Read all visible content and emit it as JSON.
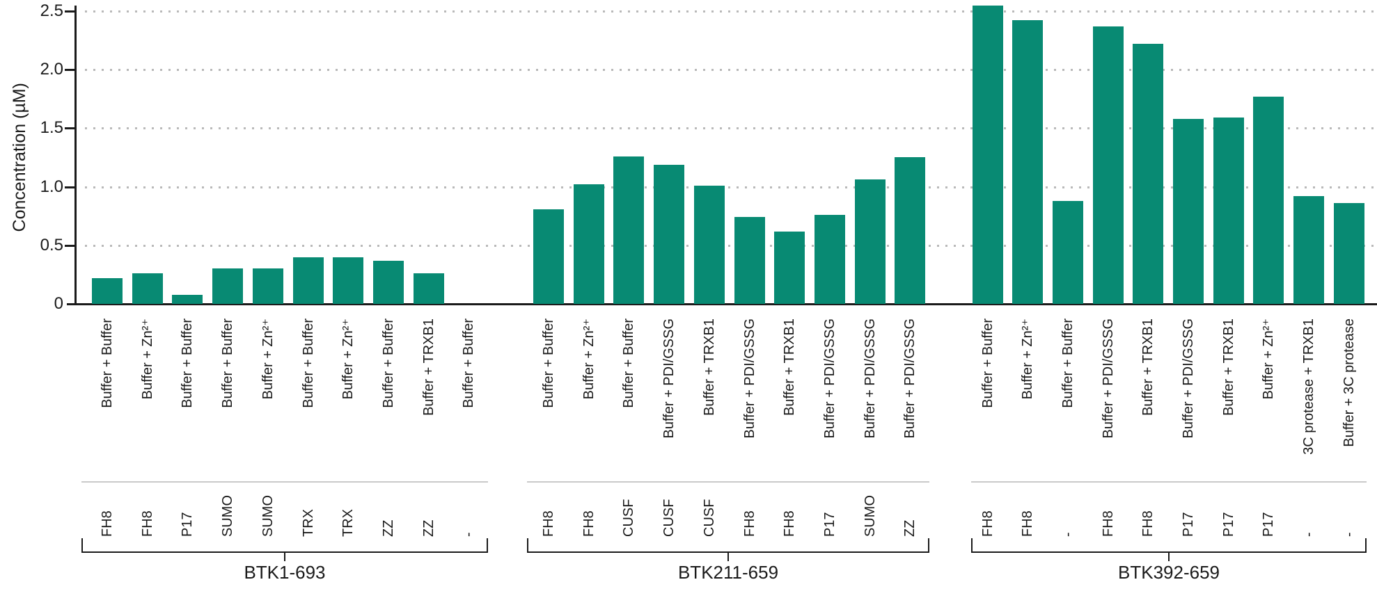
{
  "chart_data": {
    "type": "bar",
    "title": "",
    "ylabel": "Concentration (µM)",
    "ylim": [
      0,
      2.5
    ],
    "grid": "dotted horizontal gridlines at each 0.5",
    "legend": "none",
    "bar_color": "#088a73",
    "axis_color": "#1a1a1a",
    "gridline_color": "#b9b9b9",
    "yticks": [
      {
        "label": "0",
        "value": 0
      },
      {
        "label": "0.5",
        "value": 0.5
      },
      {
        "label": "1.0",
        "value": 1.0
      },
      {
        "label": "1.5",
        "value": 1.5
      },
      {
        "label": "2.0",
        "value": 2.0
      },
      {
        "label": "2.5",
        "value": 2.5
      }
    ],
    "groups": [
      {
        "name": "BTK1-693",
        "bars": [
          {
            "condition": "Buffer + Buffer",
            "tag": "FH8",
            "value": 0.22
          },
          {
            "condition": "Buffer + Zn²⁺",
            "tag": "FH8",
            "value": 0.26
          },
          {
            "condition": "Buffer + Buffer",
            "tag": "P17",
            "value": 0.08
          },
          {
            "condition": "Buffer + Buffer",
            "tag": "SUMO",
            "value": 0.3
          },
          {
            "condition": "Buffer + Zn²⁺",
            "tag": "SUMO",
            "value": 0.3
          },
          {
            "condition": "Buffer + Buffer",
            "tag": "TRX",
            "value": 0.4
          },
          {
            "condition": "Buffer + Zn²⁺",
            "tag": "TRX",
            "value": 0.4
          },
          {
            "condition": "Buffer + Buffer",
            "tag": "ZZ",
            "value": 0.37
          },
          {
            "condition": "Buffer + TRXB1",
            "tag": "ZZ",
            "value": 0.26
          },
          {
            "condition": "Buffer + Buffer",
            "tag": "-",
            "value": 0
          }
        ]
      },
      {
        "name": "BTK211-659",
        "bars": [
          {
            "condition": "Buffer + Buffer",
            "tag": "FH8",
            "value": 0.81
          },
          {
            "condition": "Buffer + Zn²⁺",
            "tag": "FH8",
            "value": 1.02
          },
          {
            "condition": "Buffer + Buffer",
            "tag": "CUSF",
            "value": 1.26
          },
          {
            "condition": "Buffer + PDI/GSSG",
            "tag": "CUSF",
            "value": 1.19
          },
          {
            "condition": "Buffer + TRXB1",
            "tag": "CUSF",
            "value": 1.01
          },
          {
            "condition": "Buffer + PDI/GSSG",
            "tag": "FH8",
            "value": 0.74
          },
          {
            "condition": "Buffer + TRXB1",
            "tag": "FH8",
            "value": 0.62
          },
          {
            "condition": "Buffer + PDI/GSSG",
            "tag": "P17",
            "value": 0.76
          },
          {
            "condition": "Buffer + PDI/GSSG",
            "tag": "SUMO",
            "value": 1.06
          },
          {
            "condition": "Buffer + PDI/GSSG",
            "tag": "ZZ",
            "value": 1.25
          }
        ]
      },
      {
        "name": "BTK392-659",
        "bars": [
          {
            "condition": "Buffer + Buffer",
            "tag": "FH8",
            "value": 2.55
          },
          {
            "condition": "Buffer + Zn²⁺",
            "tag": "FH8",
            "value": 2.42
          },
          {
            "condition": "Buffer + Buffer",
            "tag": "-",
            "value": 0.88
          },
          {
            "condition": "Buffer + PDI/GSSG",
            "tag": "FH8",
            "value": 2.37
          },
          {
            "condition": "Buffer + TRXB1",
            "tag": "FH8",
            "value": 2.22
          },
          {
            "condition": "Buffer + PDI/GSSG",
            "tag": "P17",
            "value": 1.58
          },
          {
            "condition": "Buffer + TRXB1",
            "tag": "P17",
            "value": 1.59
          },
          {
            "condition": "Buffer + Zn²⁺",
            "tag": "P17",
            "value": 1.77
          },
          {
            "condition": "3C protease + TRXB1",
            "tag": "-",
            "value": 0.92
          },
          {
            "condition": "Buffer + 3C protease",
            "tag": "-",
            "value": 0.86
          }
        ]
      }
    ]
  }
}
